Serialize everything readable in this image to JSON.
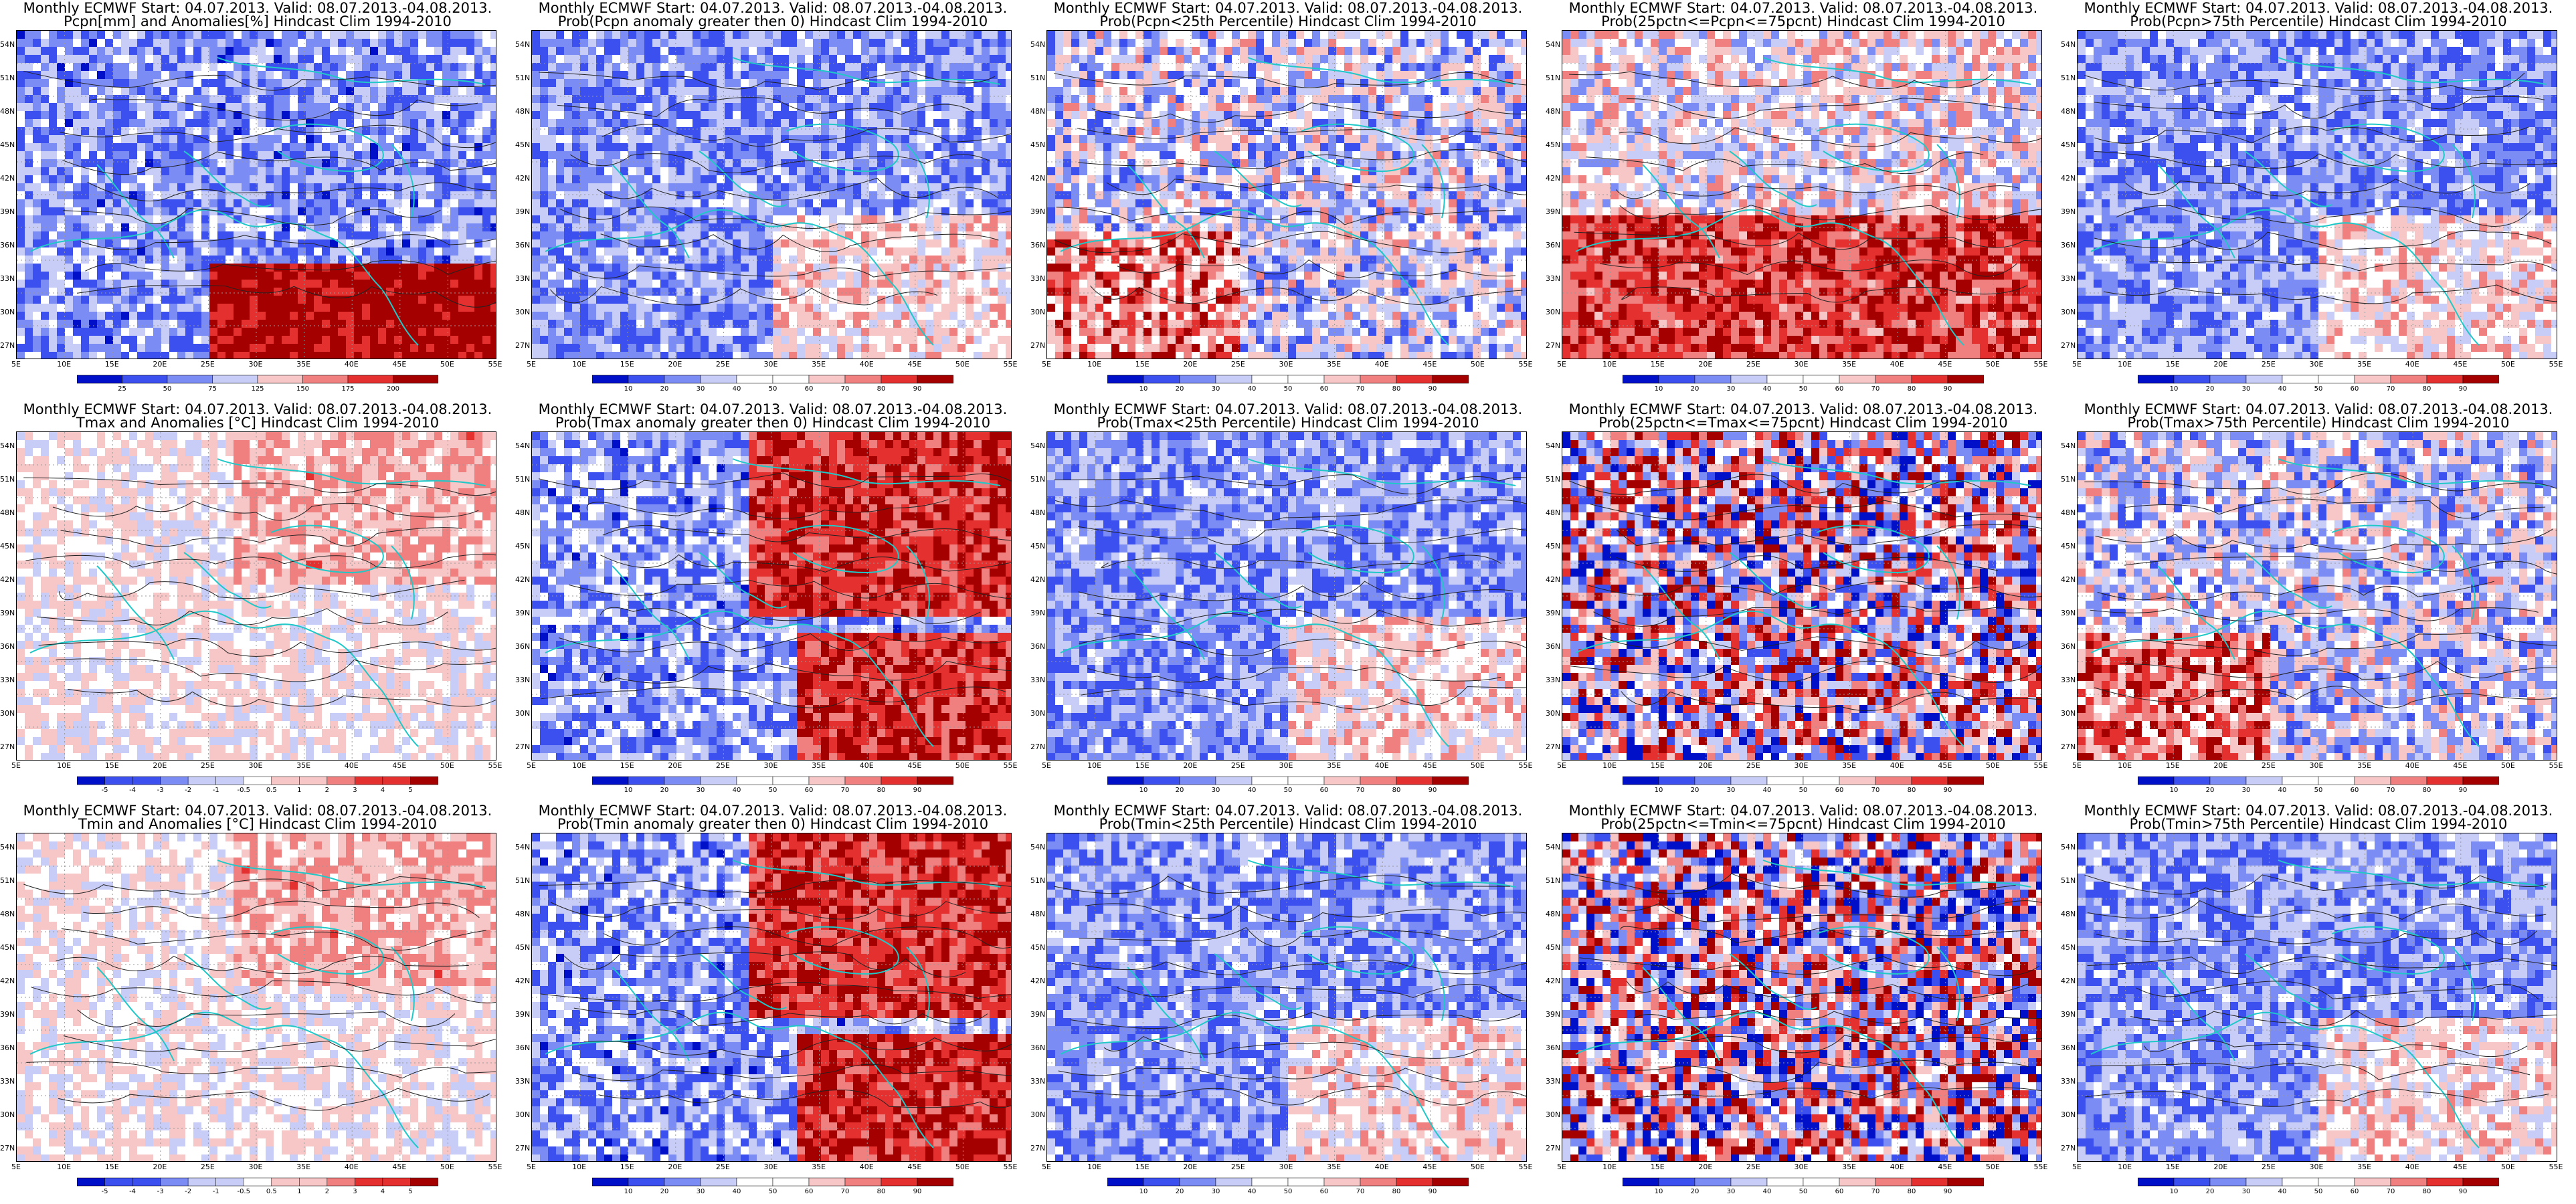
{
  "latitude_labels": [
    "54N",
    "51N",
    "48N",
    "45N",
    "42N",
    "39N",
    "36N",
    "33N",
    "30N",
    "27N"
  ],
  "longitude_labels": [
    "5E",
    "10E",
    "15E",
    "20E",
    "25E",
    "30E",
    "35E",
    "40E",
    "45E",
    "50E",
    "55E"
  ],
  "colors": {
    "deep_blue": "#0010c8",
    "blue": "#3c50f0",
    "mid_blue": "#7c8cf5",
    "light_blue": "#c7cdf7",
    "white": "#ffffff",
    "light_red": "#f7c6c6",
    "mid_red": "#f08080",
    "red": "#e53030",
    "dark_red": "#a50000",
    "coast": "#20c8c8"
  },
  "panels": [
    {
      "title1": "Monthly ECMWF Start: 04.07.2013. Valid: 08.07.2013.-04.08.2013.",
      "title2": "Pcpn[mm] and Anomalies[%] Hindcast Clim 1994-2010",
      "colorbar": [
        "25",
        "50",
        "75",
        "125",
        "150",
        "175",
        "200"
      ],
      "bias": "bluewet"
    },
    {
      "title1": "Monthly ECMWF Start: 04.07.2013. Valid: 08.07.2013.-04.08.2013.",
      "title2": "Prob(Pcpn anomaly greater then 0) Hindcast Clim 1994-2010",
      "colorbar": [
        "10",
        "20",
        "30",
        "40",
        "50",
        "60",
        "70",
        "80",
        "90"
      ],
      "bias": "blue"
    },
    {
      "title1": "Monthly ECMWF Start: 04.07.2013. Valid: 08.07.2013.-04.08.2013.",
      "title2": "Prob(Pcpn<25th Percentile) Hindcast Clim 1994-2010",
      "colorbar": [
        "10",
        "20",
        "30",
        "40",
        "50",
        "60",
        "70",
        "80",
        "90"
      ],
      "bias": "mixedblue"
    },
    {
      "title1": "Monthly ECMWF Start: 04.07.2013. Valid: 08.07.2013.-04.08.2013.",
      "title2": "Prob(25pctn<=Pcpn<=75pcnt) Hindcast Clim 1994-2010",
      "colorbar": [
        "10",
        "20",
        "30",
        "40",
        "50",
        "60",
        "70",
        "80",
        "90"
      ],
      "bias": "redsouth"
    },
    {
      "title1": "Monthly ECMWF Start: 04.07.2013. Valid: 08.07.2013.-04.08.2013.",
      "title2": "Prob(Pcpn>75th Percentile) Hindcast Clim 1994-2010",
      "colorbar": [
        "10",
        "20",
        "30",
        "40",
        "50",
        "60",
        "70",
        "80",
        "90"
      ],
      "bias": "blue"
    },
    {
      "title1": "Monthly ECMWF Start: 04.07.2013. Valid: 08.07.2013.-04.08.2013.",
      "title2": "Tmax and Anomalies [°C] Hindcast Clim 1994-2010",
      "colorbar": [
        "-5",
        "-4",
        "-3",
        "-2",
        "-1",
        "-0.5",
        "0.5",
        "1",
        "2",
        "3",
        "4",
        "5"
      ],
      "bias": "pale"
    },
    {
      "title1": "Monthly ECMWF Start: 04.07.2013. Valid: 08.07.2013.-04.08.2013.",
      "title2": "Prob(Tmax anomaly greater then 0) Hindcast Clim 1994-2010",
      "colorbar": [
        "10",
        "20",
        "30",
        "40",
        "50",
        "60",
        "70",
        "80",
        "90"
      ],
      "bias": "rednortheast"
    },
    {
      "title1": "Monthly ECMWF Start: 04.07.2013. Valid: 08.07.2013.-04.08.2013.",
      "title2": "Prob(Tmax<25th Percentile) Hindcast Clim 1994-2010",
      "colorbar": [
        "10",
        "20",
        "30",
        "40",
        "50",
        "60",
        "70",
        "80",
        "90"
      ],
      "bias": "blue"
    },
    {
      "title1": "Monthly ECMWF Start: 04.07.2013. Valid: 08.07.2013.-04.08.2013.",
      "title2": "Prob(25pctn<=Tmax<=75pcnt) Hindcast Clim 1994-2010",
      "colorbar": [
        "10",
        "20",
        "30",
        "40",
        "50",
        "60",
        "70",
        "80",
        "90"
      ],
      "bias": "mixed"
    },
    {
      "title1": "Monthly ECMWF Start: 04.07.2013. Valid: 08.07.2013.-04.08.2013.",
      "title2": "Prob(Tmax>75th Percentile) Hindcast Clim 1994-2010",
      "colorbar": [
        "10",
        "20",
        "30",
        "40",
        "50",
        "60",
        "70",
        "80",
        "90"
      ],
      "bias": "mixedblue"
    },
    {
      "title1": "Monthly ECMWF Start: 04.07.2013. Valid: 08.07.2013.-04.08.2013.",
      "title2": "Tmin and Anomalies [°C] Hindcast Clim 1994-2010",
      "colorbar": [
        "-5",
        "-4",
        "-3",
        "-2",
        "-1",
        "-0.5",
        "0.5",
        "1",
        "2",
        "3",
        "4",
        "5"
      ],
      "bias": "pale"
    },
    {
      "title1": "Monthly ECMWF Start: 04.07.2013. Valid: 08.07.2013.-04.08.2013.",
      "title2": "Prob(Tmin anomaly greater then 0) Hindcast Clim 1994-2010",
      "colorbar": [
        "10",
        "20",
        "30",
        "40",
        "50",
        "60",
        "70",
        "80",
        "90"
      ],
      "bias": "rednortheast"
    },
    {
      "title1": "Monthly ECMWF Start: 04.07.2013. Valid: 08.07.2013.-04.08.2013.",
      "title2": "Prob(Tmin<25th Percentile) Hindcast Clim 1994-2010",
      "colorbar": [
        "10",
        "20",
        "30",
        "40",
        "50",
        "60",
        "70",
        "80",
        "90"
      ],
      "bias": "blue"
    },
    {
      "title1": "Monthly ECMWF Start: 04.07.2013. Valid: 08.07.2013.-04.08.2013.",
      "title2": "Prob(25pctn<=Tmin<=75pcnt) Hindcast Clim 1994-2010",
      "colorbar": [
        "10",
        "20",
        "30",
        "40",
        "50",
        "60",
        "70",
        "80",
        "90"
      ],
      "bias": "mixed"
    },
    {
      "title1": "Monthly ECMWF Start: 04.07.2013. Valid: 08.07.2013.-04.08.2013.",
      "title2": "Prob(Tmin>75th Percentile) Hindcast Clim 1994-2010",
      "colorbar": [
        "10",
        "20",
        "30",
        "40",
        "50",
        "60",
        "70",
        "80",
        "90"
      ],
      "bias": "blue"
    }
  ]
}
